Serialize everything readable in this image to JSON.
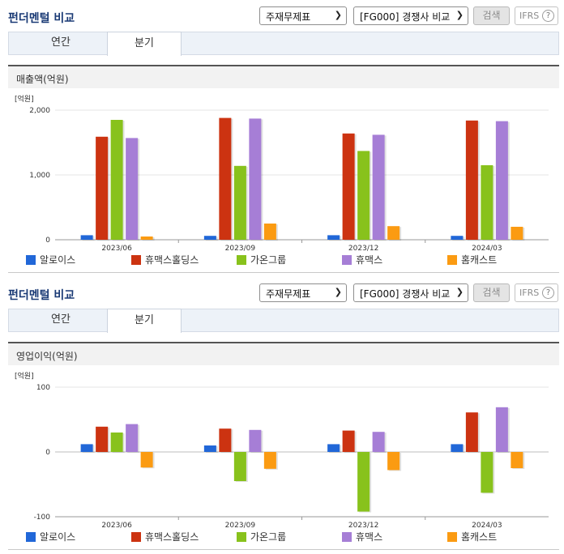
{
  "colors": {
    "series": [
      "#2167d8",
      "#cc3311",
      "#88c21c",
      "#a67ed6",
      "#fb9b12"
    ],
    "grid": "#e4e4e4",
    "axis": "#999999"
  },
  "icons": {
    "dropdown": "chevron-down-icon",
    "help": "question-circle-icon"
  },
  "sections": [
    {
      "title": "펀더멘털 비교",
      "select1": "주재무제표",
      "select2": "[FG000] 경쟁사 비교",
      "search_label": "검색",
      "ifrs_label": "IFRS",
      "help_label": "?",
      "tabs": [
        "연간",
        "분기"
      ],
      "active_tab": "분기",
      "chart_title": "매출액(억원)",
      "unit": "[억원]",
      "legend": [
        "알로이스",
        "휴맥스홀딩스",
        "가온그룹",
        "휴맥스",
        "홈캐스트"
      ]
    },
    {
      "title": "펀더멘털 비교",
      "select1": "주재무제표",
      "select2": "[FG000] 경쟁사 비교",
      "search_label": "검색",
      "ifrs_label": "IFRS",
      "help_label": "?",
      "tabs": [
        "연간",
        "분기"
      ],
      "active_tab": "분기",
      "chart_title": "영업이익(억원)",
      "unit": "[억원]",
      "legend": [
        "알로이스",
        "휴맥스홀딩스",
        "가온그룹",
        "휴맥스",
        "홈캐스트"
      ]
    }
  ],
  "chart_data": [
    {
      "type": "bar",
      "title": "매출액(억원)",
      "ylabel": "[억원]",
      "categories": [
        "2023/06",
        "2023/09",
        "2023/12",
        "2024/03"
      ],
      "ylim": [
        0,
        2000
      ],
      "yticks": [
        0,
        1000,
        2000
      ],
      "ytick_labels": [
        "0",
        "1,000",
        "2,000"
      ],
      "grid": true,
      "legend_position": "bottom",
      "series": [
        {
          "name": "알로이스",
          "values": [
            70,
            60,
            70,
            60
          ]
        },
        {
          "name": "휴맥스홀딩스",
          "values": [
            1590,
            1880,
            1640,
            1840
          ]
        },
        {
          "name": "가온그룹",
          "values": [
            1850,
            1140,
            1370,
            1150
          ]
        },
        {
          "name": "휴맥스",
          "values": [
            1570,
            1870,
            1620,
            1830
          ]
        },
        {
          "name": "홈캐스트",
          "values": [
            50,
            250,
            210,
            200
          ]
        }
      ]
    },
    {
      "type": "bar",
      "title": "영업이익(억원)",
      "ylabel": "[억원]",
      "categories": [
        "2023/06",
        "2023/09",
        "2023/12",
        "2024/03"
      ],
      "ylim": [
        -100,
        100
      ],
      "yticks": [
        -100,
        0,
        100
      ],
      "ytick_labels": [
        "-100",
        "0",
        "100"
      ],
      "grid": true,
      "legend_position": "bottom",
      "series": [
        {
          "name": "알로이스",
          "values": [
            12,
            10,
            12,
            12
          ]
        },
        {
          "name": "휴맥스홀딩스",
          "values": [
            39,
            36,
            33,
            61
          ]
        },
        {
          "name": "가온그룹",
          "values": [
            30,
            -45,
            -92,
            -63
          ]
        },
        {
          "name": "휴맥스",
          "values": [
            43,
            34,
            31,
            69
          ]
        },
        {
          "name": "홈캐스트",
          "values": [
            -24,
            -26,
            -28,
            -25
          ]
        }
      ]
    }
  ]
}
